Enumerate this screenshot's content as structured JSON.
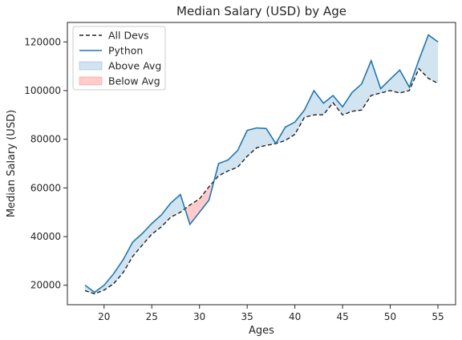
{
  "chart_data": {
    "type": "line",
    "title": "Median Salary (USD) by Age",
    "xlabel": "Ages",
    "ylabel": "Median Salary (USD)",
    "xlim": [
      16.15,
      56.85
    ],
    "ylim": [
      12000,
      128000
    ],
    "xticks": [
      20,
      25,
      30,
      35,
      40,
      45,
      50,
      55
    ],
    "yticks": [
      20000,
      40000,
      60000,
      80000,
      100000,
      120000
    ],
    "x": [
      18,
      19,
      20,
      21,
      22,
      23,
      24,
      25,
      26,
      27,
      28,
      29,
      30,
      31,
      32,
      33,
      34,
      35,
      36,
      37,
      38,
      39,
      40,
      41,
      42,
      43,
      44,
      45,
      46,
      47,
      48,
      49,
      50,
      51,
      52,
      53,
      54,
      55
    ],
    "series": [
      {
        "name": "All Devs",
        "style": "dashed",
        "color": "#222222",
        "values": [
          17784,
          16500,
          18012,
          20628,
          25206,
          31857,
          36486,
          41000,
          44000,
          48000,
          50000,
          53000,
          55500,
          60500,
          65000,
          67000,
          68500,
          73000,
          76500,
          77500,
          78200,
          79500,
          82000,
          89000,
          90000,
          90100,
          95000,
          90000,
          91500,
          92000,
          98000,
          99000,
          100000,
          99000,
          100000,
          109000,
          105000,
          103000
        ]
      },
      {
        "name": "Python",
        "style": "solid",
        "color": "#1f77b4",
        "values": [
          20046,
          17100,
          20000,
          24744,
          30500,
          37732,
          41247,
          45372,
          48876,
          53850,
          57287,
          45000,
          50000,
          55000,
          70000,
          71496,
          75370,
          83640,
          84666,
          84392,
          78254,
          85000,
          87038,
          91991,
          100000,
          94796,
          97962,
          93302,
          99240,
          102736,
          112285,
          100771,
          104708,
          108423,
          101407,
          112542,
          122870,
          120000
        ]
      }
    ],
    "fill": [
      {
        "label": "Above Avg",
        "color": "#1f77b4",
        "alpha": 0.2
      },
      {
        "label": "Below Avg",
        "color": "#ff3030",
        "alpha": 0.25
      }
    ],
    "legend": {
      "placement": "upper-left"
    },
    "grid": false
  }
}
